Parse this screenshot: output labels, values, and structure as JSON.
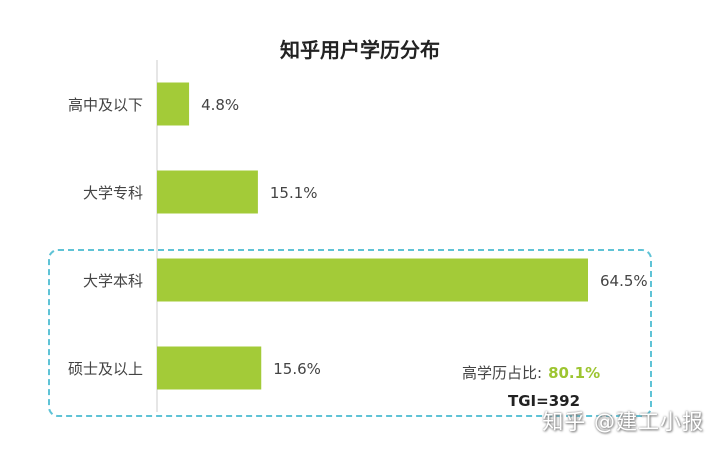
{
  "chart_data": {
    "type": "bar",
    "orientation": "horizontal",
    "title": "知乎用户学历分布",
    "categories": [
      "高中及以下",
      "大学专科",
      "大学本科",
      "硕士及以上"
    ],
    "values": [
      4.8,
      15.1,
      64.5,
      15.6
    ],
    "value_labels": [
      "4.8%",
      "15.1%",
      "64.5%",
      "15.6%"
    ],
    "unit": "%",
    "xlim": [
      0,
      70
    ],
    "grid": false,
    "bar_color": "#a3cb38",
    "highlight_box_color": "#5fc3d6"
  },
  "annotations": {
    "summary_label": "高学历占比:",
    "summary_value": "80.1%",
    "tgi": "TGI=392"
  },
  "watermark": "知乎 @建工小报"
}
